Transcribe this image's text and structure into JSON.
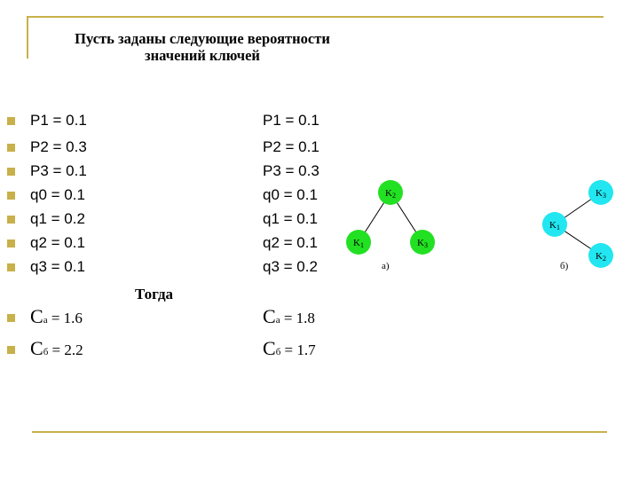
{
  "title": {
    "line1": "Пусть заданы следующие вероятности",
    "line2": "значений ключей"
  },
  "probabilities": [
    {
      "left": "P1 = 0.1",
      "right": "P1 = 0.1"
    },
    {
      "left": "P2 = 0.3",
      "right": "P2 = 0.1"
    },
    {
      "left": "P3 = 0.1",
      "right": "P3 = 0.3"
    },
    {
      "left": "q0 = 0.1",
      "right": "q0 = 0.1"
    },
    {
      "left": "q1 = 0.2",
      "right": "q1 = 0.1"
    },
    {
      "left": "q2 = 0.1",
      "right": "q2 = 0.1"
    },
    {
      "left": "q3 = 0.1",
      "right": "q3 = 0.2"
    }
  ],
  "togda": "Тогда",
  "costs": [
    {
      "c": "C",
      "sub": "а",
      "value": " = 1.6",
      "c2": "C",
      "sub2": "а",
      "value2": " = 1.8"
    },
    {
      "c": "C",
      "sub": "б",
      "value": " = 2.2",
      "c2": "C",
      "sub2": "б",
      "value2": " = 1.7"
    }
  ],
  "tree_a": {
    "label": "а)",
    "color": "#22e022",
    "nodes": [
      {
        "key": "K",
        "sub": "2"
      },
      {
        "key": "K",
        "sub": "1"
      },
      {
        "key": "K",
        "sub": "3"
      }
    ]
  },
  "tree_b": {
    "label": "б)",
    "color": "#22e6f0",
    "nodes": [
      {
        "key": "K",
        "sub": "3"
      },
      {
        "key": "K",
        "sub": "1"
      },
      {
        "key": "K",
        "sub": "2"
      }
    ]
  }
}
